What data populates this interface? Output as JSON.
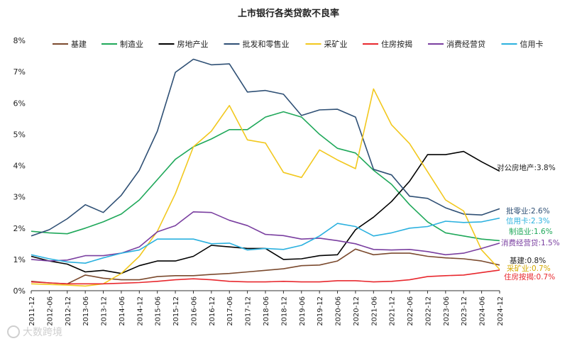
{
  "chart_data": {
    "type": "line",
    "title": "上市银行各类贷款不良率",
    "xlabel": "",
    "ylabel": "",
    "ylim": [
      0,
      8
    ],
    "yticks": [
      "0%",
      "1%",
      "2%",
      "3%",
      "4%",
      "5%",
      "6%",
      "7%",
      "8%"
    ],
    "grid": false,
    "legend_position": "top",
    "categories": [
      "2011-12",
      "2012-06",
      "2012-12",
      "2013-06",
      "2013-12",
      "2014-06",
      "2014-12",
      "2015-06",
      "2015-12",
      "2016-06",
      "2016-12",
      "2017-06",
      "2017-12",
      "2018-06",
      "2018-12",
      "2019-06",
      "2019-12",
      "2020-06",
      "2020-12",
      "2021-06",
      "2021-12",
      "2022-06",
      "2022-12",
      "2023-06",
      "2023-12",
      "2024-06",
      "2024-12"
    ],
    "series": [
      {
        "name": "基建",
        "color": "#7b4a2e",
        "values": [
          0.3,
          0.25,
          0.22,
          0.5,
          0.4,
          0.35,
          0.35,
          0.45,
          0.48,
          0.48,
          0.52,
          0.55,
          0.6,
          0.65,
          0.7,
          0.8,
          0.82,
          0.95,
          1.33,
          1.15,
          1.2,
          1.2,
          1.1,
          1.05,
          1.02,
          0.95,
          0.82
        ],
        "end_label": "基建:0.8%",
        "end_label_color": "#222222"
      },
      {
        "name": "制造业",
        "color": "#1fa85a",
        "values": [
          1.9,
          1.85,
          1.82,
          2.0,
          2.2,
          2.45,
          2.9,
          3.55,
          4.2,
          4.6,
          4.85,
          5.15,
          5.15,
          5.55,
          5.72,
          5.55,
          5.0,
          4.55,
          4.4,
          3.85,
          3.4,
          2.75,
          2.2,
          1.85,
          1.75,
          1.65,
          1.6
        ],
        "end_label": "制造业:1.6%",
        "end_label_color": "#1fa85a"
      },
      {
        "name": "房地产业",
        "color": "#000000",
        "values": [
          1.1,
          0.95,
          0.85,
          0.6,
          0.65,
          0.55,
          0.8,
          0.95,
          0.95,
          1.1,
          1.45,
          1.4,
          1.35,
          1.35,
          1.0,
          1.02,
          1.12,
          1.15,
          1.95,
          2.35,
          2.85,
          3.5,
          4.35,
          4.35,
          4.45,
          4.12,
          3.82
        ],
        "end_label": "对公房地产:3.8%",
        "end_label_color": "#222222"
      },
      {
        "name": "批发和零售业",
        "color": "#2f5075",
        "values": [
          1.75,
          1.95,
          2.3,
          2.75,
          2.5,
          3.05,
          3.85,
          5.1,
          6.98,
          7.4,
          7.22,
          7.25,
          6.35,
          6.4,
          6.28,
          5.6,
          5.78,
          5.8,
          5.55,
          3.88,
          3.7,
          3.02,
          2.95,
          2.65,
          2.45,
          2.42,
          2.62
        ],
        "end_label": "批零业:2.6%",
        "end_label_color": "#2f5075"
      },
      {
        "name": "采矿业",
        "color": "#f2c81e",
        "values": [
          0.22,
          0.2,
          0.18,
          0.15,
          0.22,
          0.55,
          1.1,
          1.9,
          3.1,
          4.6,
          5.1,
          5.92,
          4.82,
          4.72,
          3.78,
          3.62,
          4.5,
          4.18,
          3.9,
          6.45,
          5.3,
          4.7,
          3.8,
          2.9,
          2.55,
          1.3,
          0.68
        ],
        "end_label": "采矿业:0.7%",
        "end_label_color": "#d4a900"
      },
      {
        "name": "住房按揭",
        "color": "#e8282e",
        "values": [
          0.28,
          0.25,
          0.22,
          0.22,
          0.22,
          0.24,
          0.26,
          0.3,
          0.35,
          0.38,
          0.35,
          0.3,
          0.28,
          0.28,
          0.3,
          0.28,
          0.28,
          0.32,
          0.32,
          0.28,
          0.3,
          0.35,
          0.45,
          0.48,
          0.5,
          0.58,
          0.66
        ],
        "end_label": "住房按揭:0.7%",
        "end_label_color": "#e8282e"
      },
      {
        "name": "消费经营贷",
        "color": "#7a3fa0",
        "values": [
          1.0,
          0.95,
          0.98,
          1.12,
          1.12,
          1.2,
          1.4,
          1.88,
          2.08,
          2.52,
          2.5,
          2.25,
          2.08,
          1.8,
          1.76,
          1.65,
          1.68,
          1.6,
          1.5,
          1.32,
          1.3,
          1.32,
          1.25,
          1.15,
          1.2,
          1.35,
          1.52
        ],
        "end_label": "消费经营贷:1.5%",
        "end_label_color": "#7a3fa0"
      },
      {
        "name": "信用卡",
        "color": "#2bb1df",
        "values": [
          1.15,
          1.02,
          0.92,
          0.88,
          1.05,
          1.2,
          1.3,
          1.65,
          1.65,
          1.65,
          1.5,
          1.52,
          1.3,
          1.35,
          1.32,
          1.45,
          1.75,
          2.15,
          2.05,
          1.75,
          1.85,
          2.0,
          2.05,
          2.22,
          2.18,
          2.2,
          2.32
        ],
        "end_label": "信用卡:2.3%",
        "end_label_color": "#2bb1df"
      }
    ]
  },
  "watermark": "大数跨境"
}
